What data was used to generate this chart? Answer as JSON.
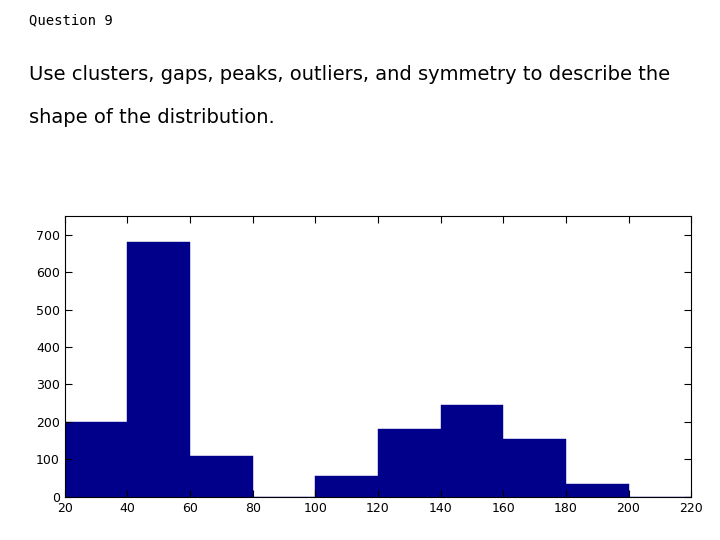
{
  "title_line1": "Question 9",
  "subtitle_line1": "Use clusters, gaps, peaks, outliers, and symmetry to describe the",
  "subtitle_line2": "shape of the distribution.",
  "bin_edges": [
    20,
    40,
    60,
    80,
    100,
    120,
    140,
    160,
    180,
    200,
    220
  ],
  "bar_heights": [
    200,
    680,
    110,
    0,
    55,
    180,
    245,
    155,
    35,
    0
  ],
  "bar_color": "#00008B",
  "xlim": [
    20,
    220
  ],
  "ylim": [
    0,
    750
  ],
  "xticks": [
    20,
    40,
    60,
    80,
    100,
    120,
    140,
    160,
    180,
    200,
    220
  ],
  "yticks": [
    0,
    100,
    200,
    300,
    400,
    500,
    600,
    700
  ],
  "figsize": [
    7.2,
    5.4
  ],
  "dpi": 100,
  "background_color": "#ffffff",
  "title_fontsize": 10,
  "subtitle_fontsize": 14,
  "tick_fontsize": 9
}
